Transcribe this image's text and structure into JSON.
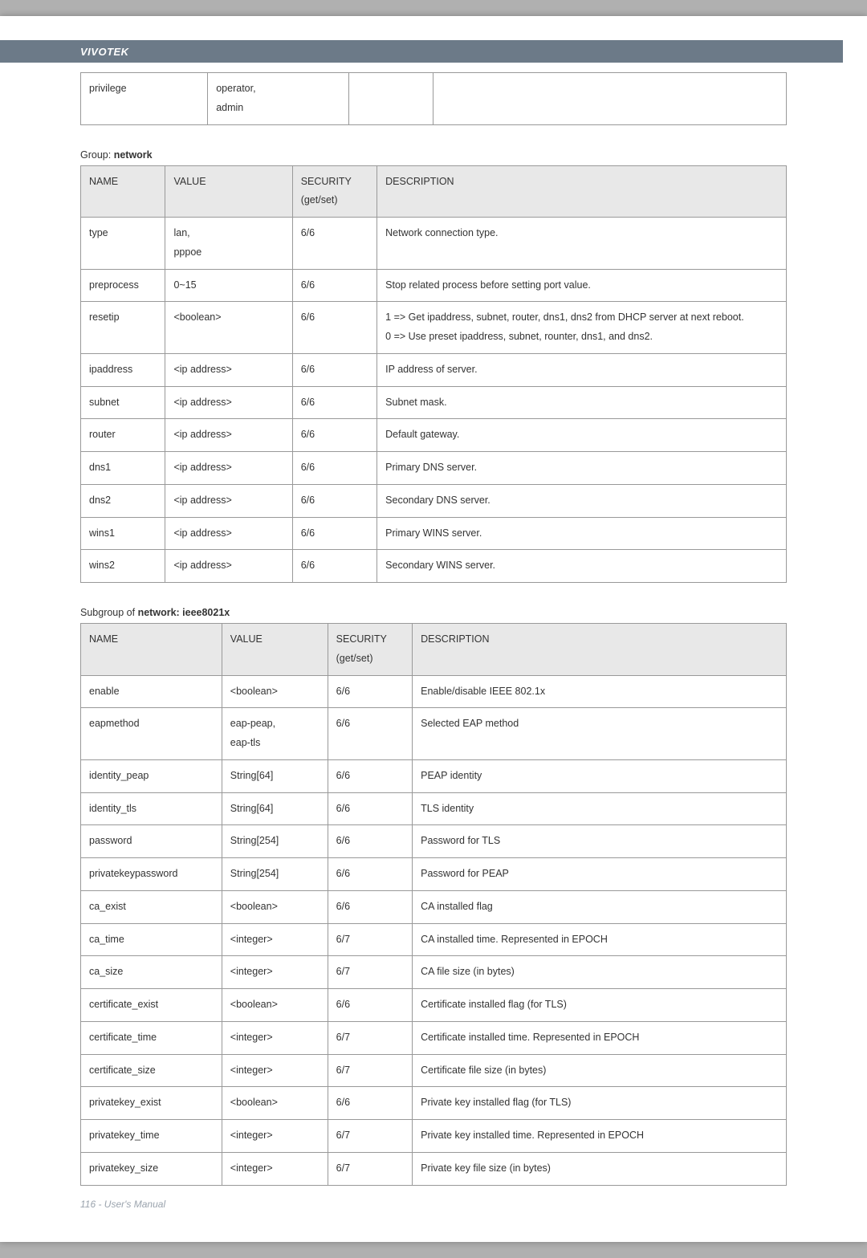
{
  "brand": "VIVOTEK",
  "footer": "116 - User's Manual",
  "table0": {
    "rows": [
      [
        "privilege",
        "operator,\nadmin",
        "",
        ""
      ]
    ]
  },
  "group1": {
    "label": "Group:",
    "name": "network"
  },
  "table1": {
    "headers": [
      "NAME",
      "VALUE",
      "SECURITY\n(get/set)",
      "DESCRIPTION"
    ],
    "rows": [
      [
        "type",
        "lan,\npppoe",
        "6/6",
        "Network connection type."
      ],
      [
        "preprocess",
        "0~15",
        "6/6",
        "Stop related process before setting port value."
      ],
      [
        "resetip",
        "<boolean>",
        "6/6",
        "1 => Get ipaddress, subnet, router, dns1, dns2 from DHCP server at next reboot.\n0 => Use preset ipaddress, subnet, rounter, dns1, and dns2."
      ],
      [
        "ipaddress",
        "<ip address>",
        "6/6",
        "IP address of server."
      ],
      [
        "subnet",
        "<ip address>",
        "6/6",
        "Subnet mask."
      ],
      [
        "router",
        "<ip address>",
        "6/6",
        "Default gateway."
      ],
      [
        "dns1",
        "<ip address>",
        "6/6",
        "Primary DNS server."
      ],
      [
        "dns2",
        "<ip address>",
        "6/6",
        "Secondary DNS server."
      ],
      [
        "wins1",
        "<ip address>",
        "6/6",
        "Primary WINS server."
      ],
      [
        "wins2",
        "<ip address>",
        "6/6",
        "Secondary WINS server."
      ]
    ]
  },
  "group2": {
    "label": "Subgroup of",
    "name": "network: ieee8021x"
  },
  "table2": {
    "headers": [
      "NAME",
      "VALUE",
      "SECURITY\n(get/set)",
      "DESCRIPTION"
    ],
    "rows": [
      [
        "enable",
        "<boolean>",
        "6/6",
        "Enable/disable IEEE 802.1x"
      ],
      [
        "eapmethod",
        "eap-peap,\neap-tls",
        "6/6",
        "Selected EAP method"
      ],
      [
        "identity_peap",
        "String[64]",
        "6/6",
        "PEAP identity"
      ],
      [
        "identity_tls",
        "String[64]",
        "6/6",
        "TLS identity"
      ],
      [
        "password",
        "String[254]",
        "6/6",
        "Password for TLS"
      ],
      [
        "privatekeypassword",
        "String[254]",
        "6/6",
        "Password for PEAP"
      ],
      [
        "ca_exist",
        "<boolean>",
        "6/6",
        "CA installed flag"
      ],
      [
        "ca_time",
        "<integer>",
        "6/7",
        "CA installed time. Represented in EPOCH"
      ],
      [
        "ca_size",
        "<integer>",
        "6/7",
        "CA file size (in bytes)"
      ],
      [
        "certificate_exist",
        "<boolean>",
        "6/6",
        "Certificate installed flag (for TLS)"
      ],
      [
        "certificate_time",
        "<integer>",
        "6/7",
        "Certificate installed time. Represented in EPOCH"
      ],
      [
        "certificate_size",
        "<integer>",
        "6/7",
        "Certificate file size (in bytes)"
      ],
      [
        "privatekey_exist",
        "<boolean>",
        "6/6",
        "Private key installed flag (for TLS)"
      ],
      [
        "privatekey_time",
        "<integer>",
        "6/7",
        "Private key installed time. Represented in EPOCH"
      ],
      [
        "privatekey_size",
        "<integer>",
        "6/7",
        "Private key file size (in bytes)"
      ]
    ]
  }
}
